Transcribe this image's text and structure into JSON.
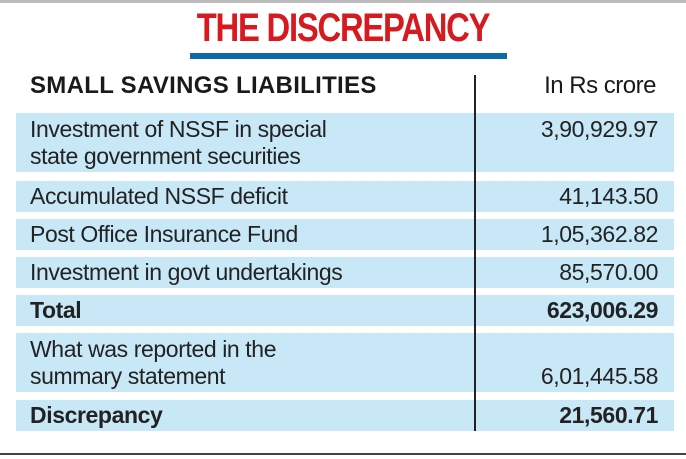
{
  "title": "THE DISCREPANCY",
  "header": {
    "label": "SMALL SAVINGS LIABILITIES",
    "unit": "In Rs crore"
  },
  "rows": [
    {
      "label_lines": [
        "Investment of NSSF in special",
        "state government securities"
      ],
      "value": "3,90,929.97"
    },
    {
      "label": "Accumulated NSSF deficit",
      "value": "41,143.50"
    },
    {
      "label": "Post Office Insurance Fund",
      "value": "1,05,362.82"
    },
    {
      "label": "Investment in govt undertakings",
      "value": "85,570.00"
    },
    {
      "label": "Total",
      "value": "623,006.29"
    },
    {
      "label_lines": [
        "What was reported in the",
        "summary statement"
      ],
      "value": "6,01,445.58"
    },
    {
      "label": "Discrepancy",
      "value": "21,560.71"
    }
  ],
  "colors": {
    "title": "#d71920",
    "underline": "#0f6aa6",
    "row_bg": "#c8e8f7"
  }
}
